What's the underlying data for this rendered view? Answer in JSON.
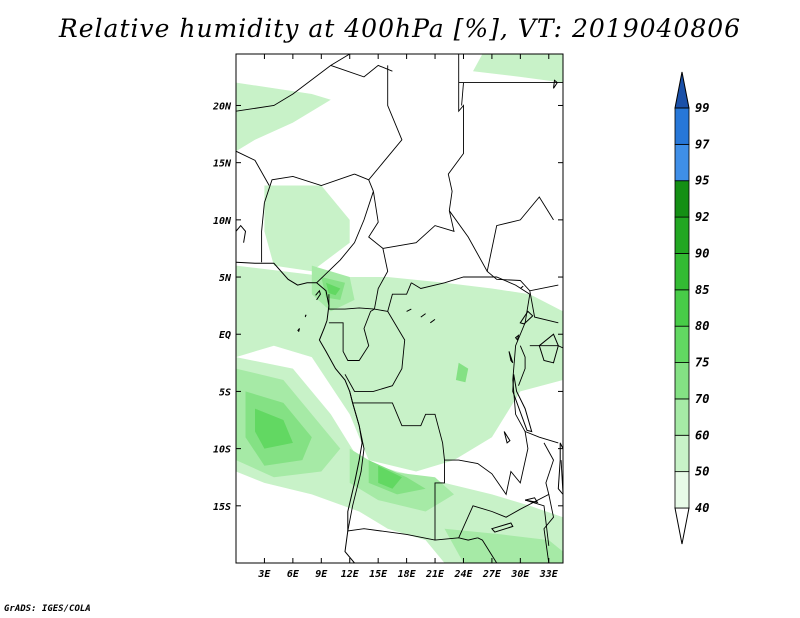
{
  "title": "Relative humidity at 400hPa [%], VT: 2019040806",
  "credit": "GrADS: IGES/COLA",
  "map": {
    "lon_range": [
      0,
      34.5
    ],
    "lat_range": [
      -20,
      24.5
    ],
    "lat_ticks": [
      {
        "value": 20,
        "label": "20N"
      },
      {
        "value": 15,
        "label": "15N"
      },
      {
        "value": 10,
        "label": "10N"
      },
      {
        "value": 5,
        "label": "5N"
      },
      {
        "value": 0,
        "label": "EQ"
      },
      {
        "value": -5,
        "label": "5S"
      },
      {
        "value": -10,
        "label": "10S"
      },
      {
        "value": -15,
        "label": "15S"
      }
    ],
    "lon_ticks": [
      {
        "value": 3,
        "label": "3E"
      },
      {
        "value": 6,
        "label": "6E"
      },
      {
        "value": 9,
        "label": "9E"
      },
      {
        "value": 12,
        "label": "12E"
      },
      {
        "value": 15,
        "label": "15E"
      },
      {
        "value": 18,
        "label": "18E"
      },
      {
        "value": 21,
        "label": "21E"
      },
      {
        "value": 24,
        "label": "24E"
      },
      {
        "value": 27,
        "label": "27E"
      },
      {
        "value": 30,
        "label": "30E"
      },
      {
        "value": 33,
        "label": "33E"
      }
    ]
  },
  "colorbar": {
    "levels": [
      "40",
      "50",
      "60",
      "70",
      "75",
      "80",
      "85",
      "90",
      "92",
      "95",
      "97",
      "99"
    ],
    "colors": [
      "#e8fbe8",
      "#c8f2c8",
      "#a6eaa6",
      "#84e184",
      "#62d862",
      "#48cc48",
      "#33bb33",
      "#22a722",
      "#148f14",
      "#3f8fe8",
      "#2777d8",
      "#1a5fc0",
      "#1a50a8"
    ]
  },
  "humidity_regions": [
    {
      "level": 1,
      "pts": [
        [
          0,
          22
        ],
        [
          8,
          21
        ],
        [
          10,
          20.5
        ],
        [
          6,
          18.5
        ],
        [
          2,
          17
        ],
        [
          0,
          16
        ]
      ]
    },
    {
      "level": 1,
      "pts": [
        [
          26,
          24.5
        ],
        [
          34.5,
          24.5
        ],
        [
          34.5,
          22
        ],
        [
          30,
          22.5
        ],
        [
          25,
          23
        ]
      ]
    },
    {
      "level": 1,
      "pts": [
        [
          3,
          13
        ],
        [
          9,
          13
        ],
        [
          12,
          10
        ],
        [
          12,
          8
        ],
        [
          8,
          5.5
        ],
        [
          4,
          6
        ],
        [
          3,
          9
        ]
      ]
    },
    {
      "level": 1,
      "pts": [
        [
          0,
          6
        ],
        [
          10,
          5
        ],
        [
          16,
          5
        ],
        [
          22,
          4.5
        ],
        [
          27,
          4
        ],
        [
          31,
          3.5
        ],
        [
          34.5,
          2
        ],
        [
          34.5,
          -4
        ],
        [
          30,
          -5
        ],
        [
          27,
          -9
        ],
        [
          23,
          -11
        ],
        [
          19,
          -12
        ],
        [
          14,
          -11
        ],
        [
          12,
          -7
        ],
        [
          8,
          -2
        ],
        [
          4,
          -1
        ],
        [
          0,
          -2
        ]
      ]
    },
    {
      "level": 1,
      "pts": [
        [
          0,
          -2
        ],
        [
          6,
          -3
        ],
        [
          10,
          -7
        ],
        [
          13,
          -11
        ],
        [
          17,
          -12
        ],
        [
          22,
          -13
        ],
        [
          27,
          -14
        ],
        [
          31,
          -15
        ],
        [
          34.5,
          -16
        ],
        [
          34.5,
          -20
        ],
        [
          22,
          -20
        ],
        [
          20,
          -18
        ],
        [
          16,
          -17
        ],
        [
          13,
          -15.5
        ],
        [
          8,
          -14
        ],
        [
          3,
          -13
        ],
        [
          0,
          -12
        ]
      ]
    },
    {
      "level": 1,
      "pts": [
        [
          21,
          -1
        ],
        [
          24,
          0
        ],
        [
          26,
          -2
        ],
        [
          25.5,
          -4
        ],
        [
          23,
          -5
        ],
        [
          21,
          -3
        ]
      ]
    },
    {
      "level": 2,
      "pts": [
        [
          0,
          -3
        ],
        [
          5,
          -4
        ],
        [
          9,
          -8
        ],
        [
          11,
          -10
        ],
        [
          9,
          -12
        ],
        [
          4,
          -12.5
        ],
        [
          0,
          -11
        ]
      ]
    },
    {
      "level": 2,
      "pts": [
        [
          8,
          6
        ],
        [
          12,
          5
        ],
        [
          12.5,
          3
        ],
        [
          10,
          2
        ],
        [
          8,
          3.5
        ]
      ]
    },
    {
      "level": 2,
      "pts": [
        [
          12,
          -10
        ],
        [
          16,
          -12
        ],
        [
          21,
          -12.5
        ],
        [
          23,
          -14
        ],
        [
          20,
          -15.5
        ],
        [
          15,
          -14.5
        ],
        [
          12,
          -13
        ]
      ]
    },
    {
      "level": 2,
      "pts": [
        [
          22,
          -17
        ],
        [
          28,
          -17.5
        ],
        [
          33,
          -18
        ],
        [
          34.5,
          -19
        ],
        [
          34.5,
          -20
        ],
        [
          24,
          -20
        ]
      ]
    },
    {
      "level": 3,
      "pts": [
        [
          1,
          -5
        ],
        [
          5,
          -6
        ],
        [
          8,
          -9
        ],
        [
          7,
          -11
        ],
        [
          3,
          -11.5
        ],
        [
          1,
          -9
        ]
      ]
    },
    {
      "level": 3,
      "pts": [
        [
          9,
          5
        ],
        [
          11.5,
          4.5
        ],
        [
          11,
          3
        ],
        [
          9.5,
          3.2
        ]
      ]
    },
    {
      "level": 3,
      "pts": [
        [
          23.5,
          -2.5
        ],
        [
          24.5,
          -3
        ],
        [
          24.2,
          -4.2
        ],
        [
          23.2,
          -4
        ]
      ]
    },
    {
      "level": 3,
      "pts": [
        [
          14,
          -11
        ],
        [
          18,
          -12.5
        ],
        [
          20,
          -13.5
        ],
        [
          17,
          -14
        ],
        [
          14,
          -13
        ]
      ]
    },
    {
      "level": 4,
      "pts": [
        [
          2,
          -6.5
        ],
        [
          5,
          -7.5
        ],
        [
          6,
          -9.5
        ],
        [
          3,
          -10
        ],
        [
          2,
          -8.5
        ]
      ]
    },
    {
      "level": 4,
      "pts": [
        [
          9.5,
          4.5
        ],
        [
          11,
          4
        ],
        [
          10.5,
          3.4
        ],
        [
          9.8,
          3.6
        ]
      ]
    },
    {
      "level": 4,
      "pts": [
        [
          15,
          -11.5
        ],
        [
          17.5,
          -12.5
        ],
        [
          16.5,
          -13.5
        ],
        [
          15,
          -13
        ]
      ]
    }
  ],
  "borders": [
    [
      [
        0,
        19.5
      ],
      [
        4,
        20
      ],
      [
        6,
        21
      ],
      [
        10,
        23.5
      ],
      [
        12,
        24.5
      ]
    ],
    [
      [
        10,
        23.5
      ],
      [
        13.5,
        22.5
      ],
      [
        15,
        23.5
      ],
      [
        16.5,
        23
      ]
    ],
    [
      [
        16,
        23.5
      ],
      [
        16,
        20
      ],
      [
        17.5,
        17
      ],
      [
        15.5,
        15
      ],
      [
        14,
        13.5
      ],
      [
        14.5,
        12.5
      ]
    ],
    [
      [
        12.5,
        14
      ],
      [
        14,
        13.5
      ]
    ],
    [
      [
        3,
        11.5
      ],
      [
        3.8,
        13.5
      ],
      [
        6,
        13.8
      ],
      [
        9,
        13
      ],
      [
        12.5,
        14
      ]
    ],
    [
      [
        0,
        16
      ],
      [
        2,
        15.2
      ],
      [
        3.5,
        13
      ]
    ],
    [
      [
        3,
        11.5
      ],
      [
        2.7,
        9
      ],
      [
        2.7,
        6.3
      ]
    ],
    [
      [
        8.5,
        4.5
      ],
      [
        11,
        6.5
      ],
      [
        12.5,
        8
      ],
      [
        13.5,
        10
      ],
      [
        14.5,
        12.5
      ],
      [
        15,
        9.8
      ],
      [
        14,
        8.5
      ],
      [
        15.5,
        7.5
      ],
      [
        16,
        5.5
      ],
      [
        15,
        4
      ],
      [
        14.6,
        2.2
      ]
    ],
    [
      [
        15.5,
        7.5
      ],
      [
        19,
        8
      ],
      [
        21,
        9.5
      ],
      [
        23,
        9
      ],
      [
        22.5,
        10.8
      ],
      [
        24.5,
        8.5
      ],
      [
        26.5,
        5.5
      ],
      [
        27.5,
        4.8
      ],
      [
        30,
        4.7
      ],
      [
        31,
        3.8
      ],
      [
        34,
        4.3
      ]
    ],
    [
      [
        23.5,
        24.5
      ],
      [
        23.5,
        19.5
      ],
      [
        24,
        20
      ],
      [
        24,
        15.8
      ],
      [
        22.4,
        14
      ],
      [
        22.8,
        12.5
      ],
      [
        22.5,
        10.8
      ]
    ],
    [
      [
        23.5,
        22
      ],
      [
        34.5,
        22
      ]
    ],
    [
      [
        23.8,
        20
      ],
      [
        24,
        22
      ]
    ],
    [
      [
        26.5,
        5.5
      ],
      [
        27.5,
        9.5
      ],
      [
        30,
        10
      ],
      [
        32,
        12
      ],
      [
        33.5,
        10
      ]
    ],
    [
      [
        9.8,
        3.5
      ],
      [
        9.8,
        2.2
      ],
      [
        11.5,
        2.2
      ],
      [
        13,
        2.3
      ],
      [
        14.6,
        2.2
      ],
      [
        16,
        2
      ],
      [
        16.5,
        3.5
      ],
      [
        18,
        3.5
      ],
      [
        18.5,
        4.5
      ]
    ],
    [
      [
        9.8,
        1
      ],
      [
        11.3,
        1
      ],
      [
        11.3,
        -1.5
      ],
      [
        11.8,
        -2.3
      ],
      [
        13,
        -2.3
      ],
      [
        14,
        -1
      ],
      [
        13.5,
        0.5
      ],
      [
        14.2,
        2
      ],
      [
        14.6,
        2.2
      ]
    ],
    [
      [
        16,
        2
      ],
      [
        17.8,
        -0.5
      ],
      [
        17.5,
        -3
      ],
      [
        16.5,
        -4.5
      ],
      [
        14.5,
        -5
      ],
      [
        12.5,
        -5
      ],
      [
        11.5,
        -3.5
      ]
    ],
    [
      [
        18.5,
        4.5
      ],
      [
        19.5,
        4
      ],
      [
        22,
        4.5
      ],
      [
        24,
        5
      ],
      [
        27.5,
        5
      ],
      [
        29.5,
        4.3
      ],
      [
        31,
        3.5
      ],
      [
        30.5,
        1
      ],
      [
        29.5,
        -1
      ],
      [
        29.2,
        -4
      ],
      [
        29.5,
        -7
      ],
      [
        30.5,
        -8.5
      ],
      [
        30.8,
        -10
      ],
      [
        30,
        -13
      ],
      [
        29,
        -12
      ],
      [
        28.5,
        -14
      ],
      [
        27,
        -12.2
      ],
      [
        25.5,
        -11.3
      ],
      [
        23.5,
        -11
      ],
      [
        22,
        -11
      ],
      [
        21.8,
        -9.5
      ],
      [
        21,
        -7
      ],
      [
        20,
        -7
      ],
      [
        19.5,
        -8
      ],
      [
        17.5,
        -8
      ],
      [
        16.5,
        -6
      ],
      [
        13.5,
        -6
      ],
      [
        12.3,
        -6
      ]
    ],
    [
      [
        12,
        -5
      ],
      [
        12.3,
        -6
      ]
    ],
    [
      [
        12.3,
        -6
      ],
      [
        13,
        -8
      ],
      [
        13.5,
        -10
      ],
      [
        13.2,
        -12
      ],
      [
        12.3,
        -15
      ],
      [
        11.8,
        -17.2
      ],
      [
        13.5,
        -17
      ],
      [
        18,
        -17.5
      ],
      [
        21,
        -18
      ],
      [
        23.5,
        -17.8
      ],
      [
        24.5,
        -18
      ],
      [
        25.5,
        -17.8
      ]
    ],
    [
      [
        21,
        -18
      ],
      [
        21,
        -13
      ],
      [
        22,
        -13
      ],
      [
        22,
        -11
      ]
    ],
    [
      [
        23.5,
        -17.8
      ],
      [
        25,
        -15
      ],
      [
        27,
        -15.5
      ],
      [
        28.5,
        -16
      ],
      [
        30,
        -15.3
      ],
      [
        33,
        -14
      ],
      [
        32.7,
        -13
      ],
      [
        33.5,
        -11
      ],
      [
        32.5,
        -9.5
      ]
    ],
    [
      [
        30.5,
        -8.5
      ],
      [
        32,
        -9
      ],
      [
        34,
        -9.5
      ]
    ],
    [
      [
        31,
        -1
      ],
      [
        34,
        -1
      ],
      [
        34.5,
        -1.2
      ]
    ],
    [
      [
        30,
        -1
      ],
      [
        30.5,
        -2
      ],
      [
        30.5,
        -3
      ],
      [
        29.8,
        -4.5
      ]
    ],
    [
      [
        31,
        3.8
      ],
      [
        31.5,
        1.5
      ],
      [
        34,
        1
      ]
    ],
    [
      [
        33,
        -14
      ],
      [
        33.5,
        -16
      ],
      [
        32.5,
        -17
      ],
      [
        33,
        -20
      ]
    ],
    [
      [
        27.5,
        -20
      ],
      [
        26,
        -18
      ],
      [
        25.5,
        -17.8
      ]
    ],
    [
      [
        30.5,
        -14.5
      ],
      [
        32.5,
        -15
      ],
      [
        33,
        -18.5
      ]
    ],
    [
      [
        34.3,
        -11
      ],
      [
        34.5,
        -14
      ]
    ]
  ],
  "coast": [
    [
      [
        0,
        6.3
      ],
      [
        2,
        6.2
      ],
      [
        4,
        6.2
      ],
      [
        5.5,
        4.8
      ],
      [
        6.5,
        4.3
      ],
      [
        7.5,
        4.5
      ],
      [
        8.5,
        4.5
      ],
      [
        9.5,
        3.8
      ],
      [
        9.8,
        2.5
      ],
      [
        9.6,
        1.2
      ],
      [
        9.3,
        0.5
      ],
      [
        8.8,
        -0.5
      ],
      [
        9.5,
        -1.5
      ],
      [
        10.5,
        -3
      ],
      [
        11.5,
        -4
      ],
      [
        12,
        -5
      ],
      [
        12.3,
        -6
      ],
      [
        13,
        -8
      ],
      [
        13.3,
        -9.5
      ],
      [
        13,
        -11
      ],
      [
        12.5,
        -13
      ],
      [
        11.8,
        -15.5
      ],
      [
        11.8,
        -17.2
      ],
      [
        11.5,
        -19
      ],
      [
        12.5,
        -20
      ]
    ],
    [
      [
        0,
        9
      ],
      [
        0.5,
        9.5
      ],
      [
        1,
        9
      ],
      [
        0.8,
        8
      ]
    ],
    [
      [
        8.5,
        3
      ],
      [
        8.9,
        3.5
      ],
      [
        8.8,
        3.8
      ],
      [
        8.4,
        3.4
      ]
    ],
    [
      [
        6.5,
        0.3
      ],
      [
        6.7,
        0.5
      ],
      [
        6.6,
        0.2
      ]
    ],
    [
      [
        7.3,
        1.6
      ],
      [
        7.4,
        1.7
      ],
      [
        7.3,
        1.5
      ]
    ]
  ],
  "lakes": [
    [
      [
        32,
        -1
      ],
      [
        33.5,
        0
      ],
      [
        34,
        -1
      ],
      [
        33.5,
        -2.5
      ],
      [
        32.5,
        -2.3
      ]
    ],
    [
      [
        29.3,
        -3.5
      ],
      [
        29.6,
        -5
      ],
      [
        30.5,
        -6.5
      ],
      [
        31.2,
        -8.5
      ],
      [
        30.7,
        -8.4
      ],
      [
        30,
        -6.8
      ],
      [
        29.2,
        -5
      ]
    ],
    [
      [
        28.8,
        -1.5
      ],
      [
        29.2,
        -2.5
      ],
      [
        29,
        -2.3
      ]
    ],
    [
      [
        34.2,
        -9.5
      ],
      [
        34.5,
        -10
      ],
      [
        34.5,
        -14
      ],
      [
        34,
        -13.5
      ],
      [
        34.2,
        -11
      ]
    ],
    [
      [
        30,
        1
      ],
      [
        30.8,
        2
      ],
      [
        31.3,
        1.6
      ],
      [
        30.4,
        0.9
      ]
    ],
    [
      [
        29.5,
        -0.3
      ],
      [
        29.8,
        -0.1
      ],
      [
        29.7,
        -0.5
      ]
    ],
    [
      [
        28.3,
        -8.5
      ],
      [
        28.9,
        -9.3
      ],
      [
        28.6,
        -9.5
      ]
    ],
    [
      [
        27,
        -17
      ],
      [
        29,
        -16.5
      ],
      [
        29.2,
        -16.8
      ],
      [
        27.3,
        -17.3
      ]
    ],
    [
      [
        30.5,
        -14.5
      ],
      [
        31.5,
        -14.3
      ],
      [
        31.8,
        -14.7
      ]
    ],
    [
      [
        30,
        4
      ],
      [
        30.3,
        4.2
      ]
    ],
    [
      [
        33.5,
        21.5
      ],
      [
        33.9,
        22
      ],
      [
        33.6,
        22.2
      ]
    ],
    [
      [
        19.5,
        1.5
      ],
      [
        20,
        1.8
      ]
    ],
    [
      [
        18,
        2
      ],
      [
        18.5,
        2.2
      ]
    ],
    [
      [
        20.5,
        1
      ],
      [
        21,
        1.3
      ]
    ]
  ]
}
